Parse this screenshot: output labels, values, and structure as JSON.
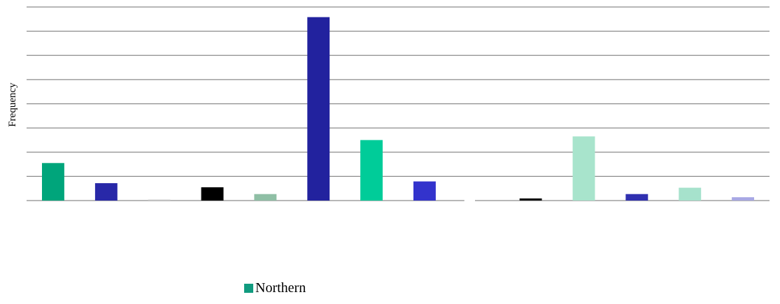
{
  "chart_data": {
    "type": "bar",
    "ylabel": "Frequency",
    "ylim": [
      0,
      8
    ],
    "gridlines": [
      0,
      1,
      2,
      3,
      4,
      5,
      6,
      7,
      8
    ],
    "grid": true,
    "legend_position": "bottom",
    "series": [
      {
        "name": "Northern",
        "color": "#119b7f",
        "values": [
          1.55,
          0.72,
          0.04,
          0.55,
          0.27,
          7.58,
          2.5,
          0.79,
          0.0,
          0.09,
          2.65,
          0.27,
          0.53,
          0.14
        ],
        "colors": [
          "#00a57b",
          "#2828a8",
          "#c8c8c8",
          "#000000",
          "#8fbfa5",
          "#22229e",
          "#00cc99",
          "#3333cc",
          "#ffffff",
          "#111111",
          "#a8e4cc",
          "#3030b0",
          "#a6e2cc",
          "#a8a8e4"
        ]
      }
    ]
  }
}
